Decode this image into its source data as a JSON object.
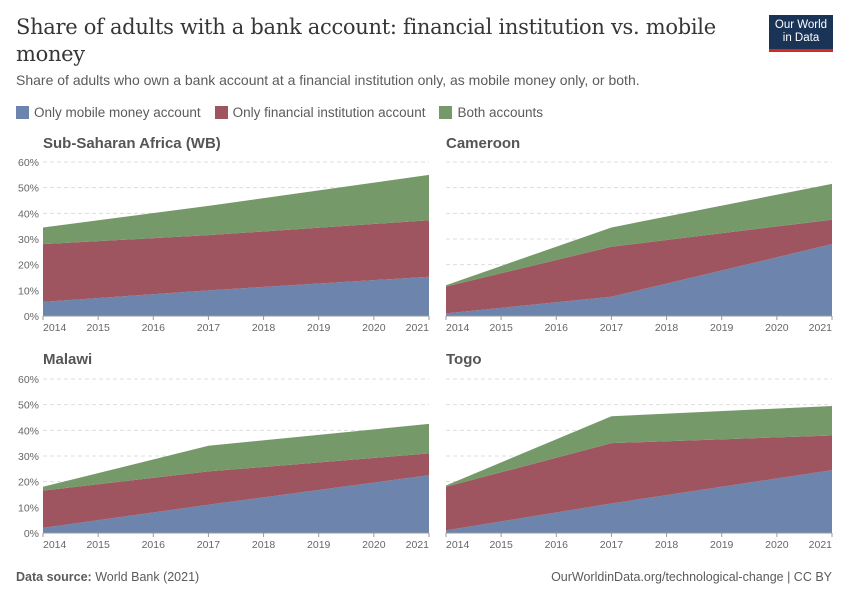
{
  "header": {
    "title": "Share of adults with a bank account: financial institution vs. mobile money",
    "subtitle": "Share of adults who own a bank account at a financial institution only, as mobile money only, or both.",
    "logo_line1": "Our World",
    "logo_line2": "in Data"
  },
  "legend": [
    {
      "label": "Only mobile money account",
      "color": "#6d84ad"
    },
    {
      "label": "Only financial institution account",
      "color": "#9e5560"
    },
    {
      "label": "Both accounts",
      "color": "#76996a"
    }
  ],
  "footer": {
    "source_label": "Data source:",
    "source_value": "World Bank (2021)",
    "credit": "OurWorldinData.org/technological-change | CC BY"
  },
  "chart_data": [
    {
      "type": "area",
      "stacked": true,
      "title": "Sub-Saharan Africa (WB)",
      "x": [
        2014,
        2017,
        2021
      ],
      "xticks": [
        2014,
        2015,
        2016,
        2017,
        2018,
        2019,
        2020,
        2021
      ],
      "yticks": [
        "0%",
        "10%",
        "20%",
        "30%",
        "40%",
        "50%",
        "60%"
      ],
      "ylim": [
        0,
        60
      ],
      "series": [
        {
          "name": "Only mobile money account",
          "values": [
            5.5,
            10,
            15.3
          ]
        },
        {
          "name": "Only financial institution account",
          "values": [
            22.5,
            21.5,
            22
          ]
        },
        {
          "name": "Both accounts",
          "values": [
            6.5,
            11.4,
            17.7
          ]
        }
      ]
    },
    {
      "type": "area",
      "stacked": true,
      "title": "Cameroon",
      "x": [
        2014,
        2017,
        2021
      ],
      "xticks": [
        2014,
        2015,
        2016,
        2017,
        2018,
        2019,
        2020,
        2021
      ],
      "ylim": [
        0,
        60
      ],
      "series": [
        {
          "name": "Only mobile money account",
          "values": [
            1,
            7.5,
            28
          ]
        },
        {
          "name": "Only financial institution account",
          "values": [
            10.5,
            19.5,
            9.5
          ]
        },
        {
          "name": "Both accounts",
          "values": [
            0.5,
            7.5,
            14
          ]
        }
      ]
    },
    {
      "type": "area",
      "stacked": true,
      "title": "Malawi",
      "x": [
        2014,
        2017,
        2021
      ],
      "xticks": [
        2014,
        2015,
        2016,
        2017,
        2018,
        2019,
        2020,
        2021
      ],
      "yticks": [
        "0%",
        "10%",
        "20%",
        "30%",
        "40%",
        "50%",
        "60%"
      ],
      "ylim": [
        0,
        60
      ],
      "series": [
        {
          "name": "Only mobile money account",
          "values": [
            2,
            11,
            22.5
          ]
        },
        {
          "name": "Only financial institution account",
          "values": [
            14.5,
            13,
            8.5
          ]
        },
        {
          "name": "Both accounts",
          "values": [
            1.5,
            10,
            11.5
          ]
        }
      ]
    },
    {
      "type": "area",
      "stacked": true,
      "title": "Togo",
      "x": [
        2014,
        2017,
        2021
      ],
      "xticks": [
        2014,
        2015,
        2016,
        2017,
        2018,
        2019,
        2020,
        2021
      ],
      "ylim": [
        0,
        60
      ],
      "series": [
        {
          "name": "Only mobile money account",
          "values": [
            1,
            11.5,
            24.5
          ]
        },
        {
          "name": "Only financial institution account",
          "values": [
            17,
            23.5,
            13.5
          ]
        },
        {
          "name": "Both accounts",
          "values": [
            0.5,
            10.5,
            11.5
          ]
        }
      ]
    }
  ]
}
